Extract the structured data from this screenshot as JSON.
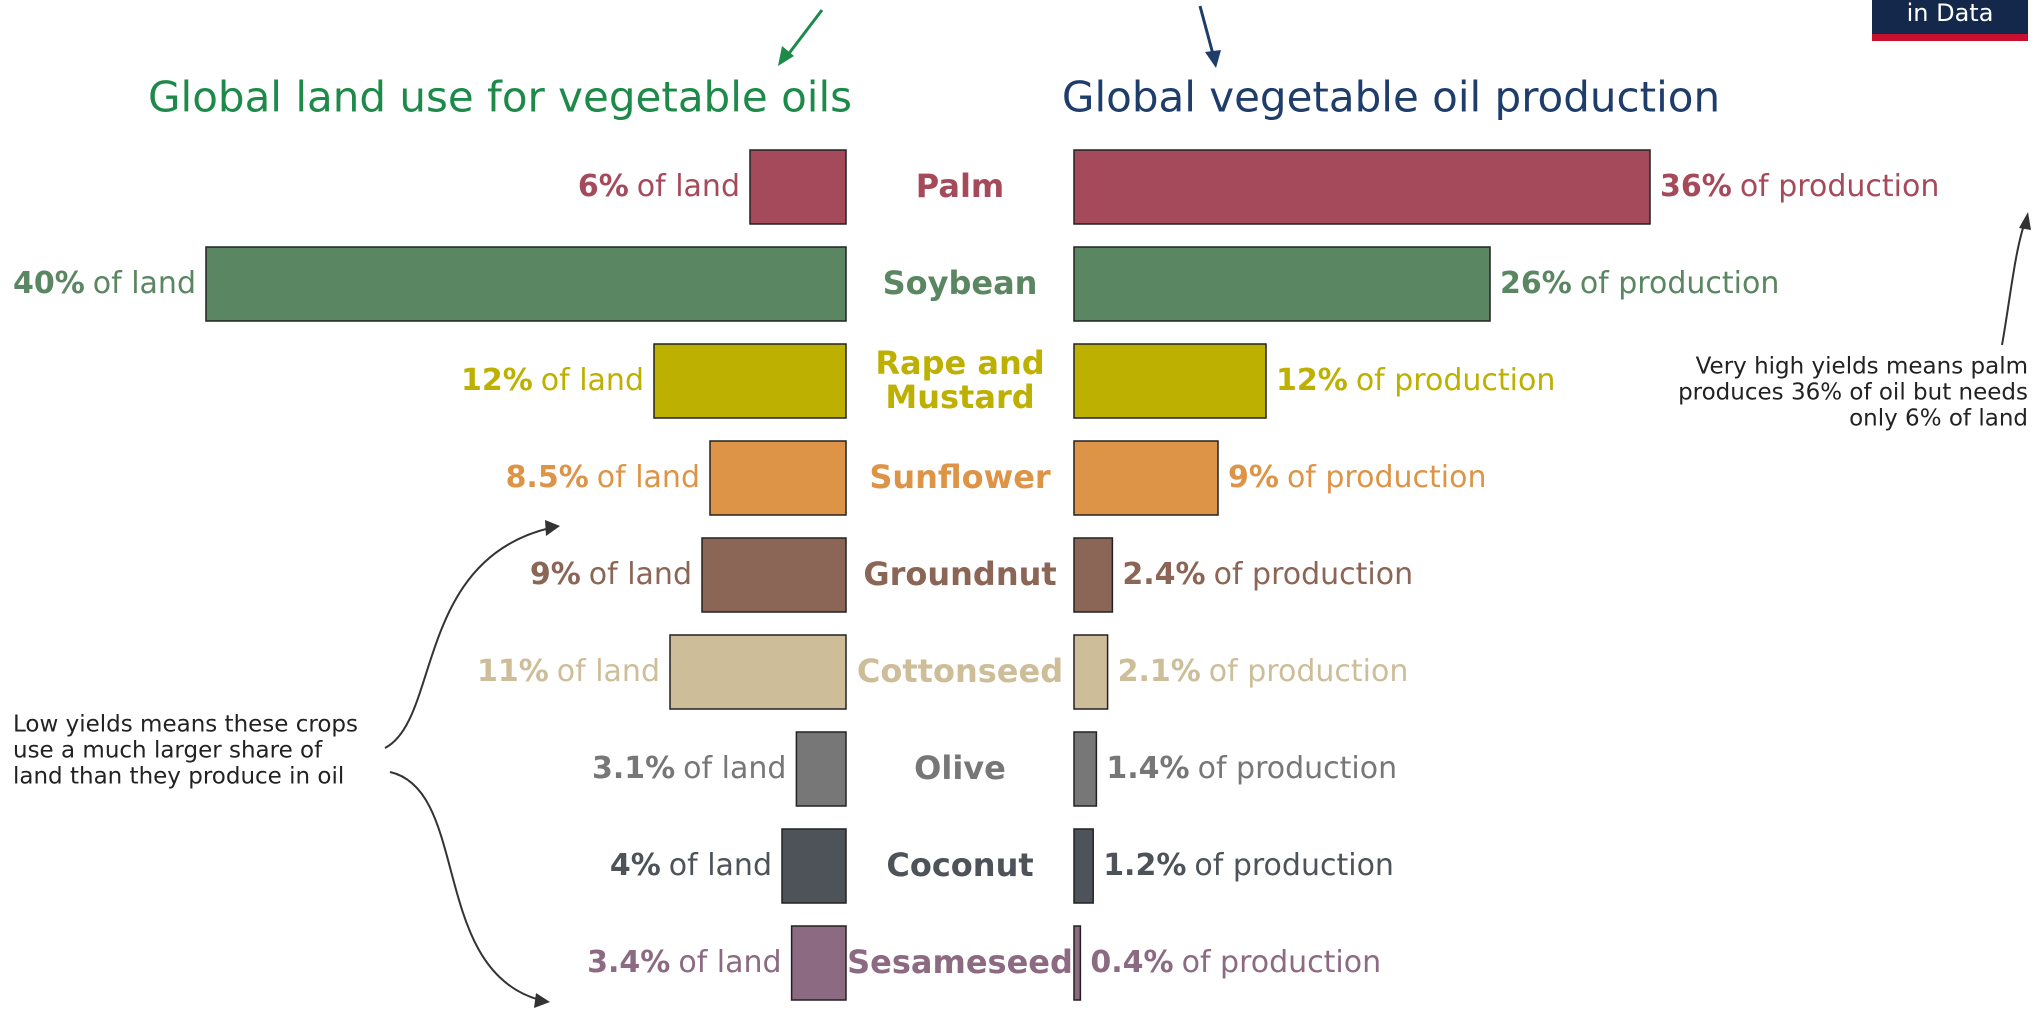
{
  "chart_data": {
    "type": "bar",
    "categories": [
      "Palm",
      "Soybean",
      "Rape and Mustard",
      "Sunflower",
      "Groundnut",
      "Cottonseed",
      "Olive",
      "Coconut",
      "Sesameseed"
    ],
    "colors": [
      "#a54a5a",
      "#5a8661",
      "#bdb000",
      "#dd9447",
      "#8b6555",
      "#cdbd98",
      "#777777",
      "#4e535a",
      "#8c6a82"
    ],
    "xlim": [
      0,
      40
    ],
    "series": [
      {
        "name": "Global land use for vegetable oils",
        "color": "#1d8a4a",
        "unit": "of land",
        "values": [
          6,
          40,
          12,
          8.5,
          9,
          11,
          3.1,
          4,
          3.4
        ],
        "value_labels": [
          "6%",
          "40%",
          "12%",
          "8.5%",
          "9%",
          "11%",
          "3.1%",
          "4%",
          "3.4%"
        ]
      },
      {
        "name": "Global vegetable oil production",
        "color": "#1f3d6b",
        "unit": "of production",
        "values": [
          36,
          26,
          12,
          9,
          2.4,
          2.1,
          1.4,
          1.2,
          0.4
        ],
        "value_labels": [
          "36%",
          "26%",
          "12%",
          "9%",
          "2.4%",
          "2.1%",
          "1.4%",
          "1.2%",
          "0.4%"
        ]
      }
    ],
    "annotations": [
      [
        "Very high yields means palm",
        "produces 36% of oil but needs",
        "only 6% of land"
      ],
      [
        "Low yields means these crops",
        "use a much larger share of",
        "land than they produce in oil"
      ]
    ],
    "logo": "in Data"
  }
}
